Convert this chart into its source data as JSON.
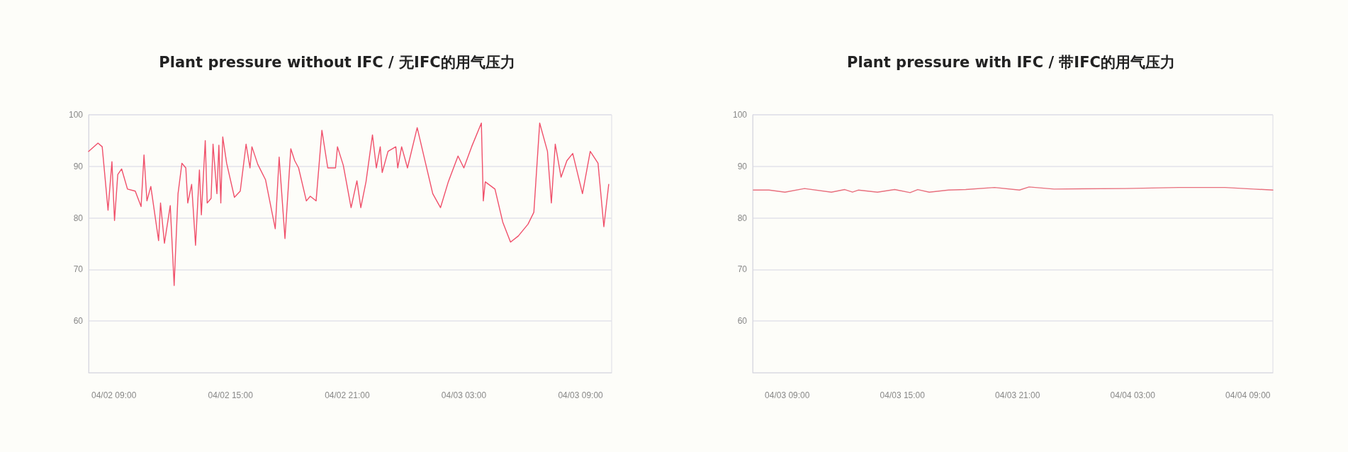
{
  "chart_data": [
    {
      "type": "line",
      "title": "Plant pressure without IFC / 无IFC的用气压力",
      "xlim": [
        "--04-02T07:42",
        "--04-03T10:36"
      ],
      "xticks": [
        {
          "value": "--04-02T09:00",
          "label": "04/02 09:00"
        },
        {
          "value": "--04-02T15:00",
          "label": "04/02 15:00"
        },
        {
          "value": "--04-02T21:00",
          "label": "04/02 21:00"
        },
        {
          "value": "--04-03T03:00",
          "label": "04/03 03:00"
        },
        {
          "value": "--04-03T09:00",
          "label": "04/03 09:00"
        }
      ],
      "ylim": [
        50,
        100
      ],
      "yticks": [
        60,
        70,
        80,
        90,
        100
      ],
      "grid": "y",
      "marker": "none",
      "line_style": "solid",
      "series": [
        {
          "color": "#f0506a",
          "x": [
            "--04-02T07:42",
            "--04-02T08:11",
            "--04-02T08:24",
            "--04-02T08:42",
            "--04-02T08:54",
            "--04-02T09:02",
            "--04-02T09:12",
            "--04-02T09:24",
            "--04-02T09:42",
            "--04-02T10:06",
            "--04-02T10:24",
            "--04-02T10:33",
            "--04-02T10:42",
            "--04-02T10:54",
            "--04-02T11:18",
            "--04-02T11:24",
            "--04-02T11:36",
            "--04-02T11:54",
            "--04-02T12:06",
            "--04-02T12:18",
            "--04-02T12:30",
            "--04-02T12:42",
            "--04-02T12:48",
            "--04-02T13:00",
            "--04-02T13:12",
            "--04-02T13:24",
            "--04-02T13:30",
            "--04-02T13:42",
            "--04-02T13:48",
            "--04-02T14:00",
            "--04-02T14:06",
            "--04-02T14:18",
            "--04-02T14:24",
            "--04-02T14:30",
            "--04-02T14:36",
            "--04-02T14:48",
            "--04-02T15:12",
            "--04-02T15:30",
            "--04-02T15:48",
            "--04-02T16:00",
            "--04-02T16:06",
            "--04-02T16:24",
            "--04-02T16:48",
            "--04-02T17:18",
            "--04-02T17:30",
            "--04-02T17:48",
            "--04-02T18:06",
            "--04-02T18:18",
            "--04-02T18:30",
            "--04-02T18:54",
            "--04-02T19:06",
            "--04-02T19:24",
            "--04-02T19:42",
            "--04-02T20:00",
            "--04-02T20:24",
            "--04-02T20:30",
            "--04-02T20:48",
            "--04-02T21:12",
            "--04-02T21:30",
            "--04-02T21:42",
            "--04-02T21:58",
            "--04-02T22:18",
            "--04-02T22:30",
            "--04-02T22:42",
            "--04-02T22:48",
            "--04-02T23:06",
            "--04-02T23:30",
            "--04-02T23:36",
            "--04-02T23:48",
            "--04-03T00:06",
            "--04-03T00:36",
            "--04-03T01:00",
            "--04-03T01:24",
            "--04-03T01:48",
            "--04-03T02:12",
            "--04-03T02:42",
            "--04-03T03:00",
            "--04-03T03:24",
            "--04-03T03:54",
            "--04-03T04:00",
            "--04-03T04:06",
            "--04-03T04:36",
            "--04-03T05:00",
            "--04-03T05:24",
            "--04-03T05:48",
            "--04-03T06:18",
            "--04-03T06:36",
            "--04-03T06:54",
            "--04-03T07:18",
            "--04-03T07:30",
            "--04-03T07:42",
            "--04-03T08:00",
            "--04-03T08:18",
            "--04-03T08:36",
            "--04-03T09:06",
            "--04-03T09:30",
            "--04-03T09:54",
            "--04-03T10:12",
            "--04-03T10:27"
          ],
          "values": [
            92.9,
            94.5,
            93.8,
            81.5,
            90.9,
            79.5,
            88.4,
            89.5,
            85.6,
            85.2,
            82.2,
            92.2,
            83.3,
            86.1,
            75.6,
            82.9,
            75.1,
            82.4,
            66.9,
            84.7,
            90.6,
            89.7,
            82.9,
            86.5,
            74.7,
            89.3,
            80.6,
            95.0,
            82.9,
            83.8,
            94.3,
            84.7,
            94.1,
            82.9,
            95.7,
            90.6,
            84.0,
            85.2,
            94.3,
            89.7,
            93.8,
            90.4,
            87.4,
            77.9,
            91.8,
            76.0,
            93.4,
            91.1,
            89.7,
            83.3,
            84.2,
            83.3,
            97.0,
            89.7,
            89.7,
            93.8,
            90.2,
            82.0,
            87.2,
            82.0,
            87.0,
            96.1,
            89.7,
            93.8,
            88.8,
            92.9,
            93.8,
            89.7,
            93.8,
            89.7,
            97.5,
            91.1,
            84.7,
            82.0,
            87.0,
            92.0,
            89.7,
            93.8,
            98.4,
            83.3,
            87.0,
            85.6,
            79.2,
            75.3,
            76.5,
            78.8,
            81.1,
            98.4,
            92.9,
            82.9,
            94.3,
            87.9,
            91.1,
            92.5,
            84.7,
            92.9,
            90.6,
            78.3,
            86.5
          ]
        }
      ]
    },
    {
      "type": "line",
      "title": "Plant pressure with IFC / 带IFC的用气压力",
      "xlim": [
        "--04-03T07:12",
        "--04-04T10:18"
      ],
      "xticks": [
        {
          "value": "--04-03T09:00",
          "label": "04/03 09:00"
        },
        {
          "value": "--04-03T15:00",
          "label": "04/03 15:00"
        },
        {
          "value": "--04-03T21:00",
          "label": "04/03 21:00"
        },
        {
          "value": "--04-04T03:00",
          "label": "04/04 03:00"
        },
        {
          "value": "--04-04T09:00",
          "label": "04/04 09:00"
        }
      ],
      "ylim": [
        50,
        100
      ],
      "yticks": [
        60,
        70,
        80,
        90,
        100
      ],
      "grid": "y",
      "marker": "none",
      "line_style": "solid",
      "series": [
        {
          "color": "#e8707e",
          "x": [
            "--04-03T07:14",
            "--04-03T08:03",
            "--04-03T08:53",
            "--04-03T09:54",
            "--04-03T11:18",
            "--04-03T12:00",
            "--04-03T12:24",
            "--04-03T12:42",
            "--04-03T13:42",
            "--04-03T14:36",
            "--04-03T15:24",
            "--04-03T15:48",
            "--04-03T16:24",
            "--04-03T17:24",
            "--04-03T18:18",
            "--04-03T19:48",
            "--04-03T21:06",
            "--04-03T21:36",
            "--04-03T22:54",
            "--04-04T02:36",
            "--04-04T05:24",
            "--04-04T07:48",
            "--04-04T09:18",
            "--04-04T10:18"
          ],
          "values": [
            85.4,
            85.4,
            85.0,
            85.7,
            85.0,
            85.5,
            85.0,
            85.4,
            85.0,
            85.5,
            84.9,
            85.5,
            85.0,
            85.4,
            85.5,
            85.9,
            85.4,
            86.0,
            85.6,
            85.7,
            85.9,
            85.9,
            85.6,
            85.4
          ]
        }
      ]
    }
  ]
}
